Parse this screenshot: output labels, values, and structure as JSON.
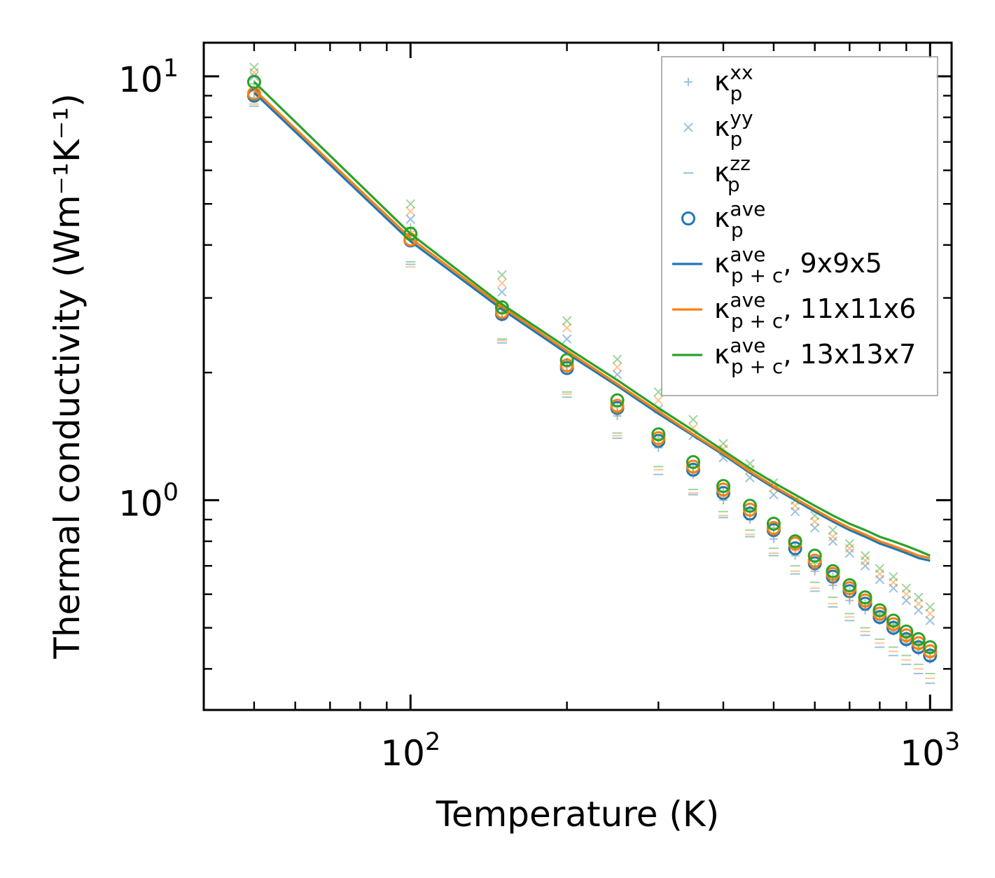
{
  "chart_data": {
    "type": "scatter",
    "xscale": "log",
    "yscale": "log",
    "xlabel": "Temperature (K)",
    "ylabel": "Thermal conductivity (Wm⁻¹K⁻¹)",
    "xlim": [
      40,
      1100
    ],
    "ylim": [
      0.32,
      12
    ],
    "x_ticks": [
      {
        "value": 100,
        "base": "10",
        "exp": "2"
      },
      {
        "value": 1000,
        "base": "10",
        "exp": "3"
      }
    ],
    "y_ticks": [
      {
        "value": 1,
        "base": "10",
        "exp": "0"
      },
      {
        "value": 10,
        "base": "10",
        "exp": "1"
      }
    ],
    "temperatures": [
      50,
      100,
      150,
      200,
      250,
      300,
      350,
      400,
      450,
      500,
      550,
      600,
      650,
      700,
      750,
      800,
      850,
      900,
      950,
      1000
    ],
    "series": [
      {
        "name": "9x9x5",
        "color": "#1f77b4",
        "kappa_xx": [
          8.9,
          4.2,
          2.7,
          2.02,
          1.58,
          1.33,
          1.15,
          1.0,
          0.9,
          0.81,
          0.74,
          0.68,
          0.63,
          0.58,
          0.55,
          0.52,
          0.49,
          0.46,
          0.44,
          0.42
        ],
        "kappa_yy": [
          10.0,
          4.6,
          3.1,
          2.4,
          1.98,
          1.64,
          1.42,
          1.26,
          1.13,
          1.03,
          0.94,
          0.86,
          0.8,
          0.75,
          0.7,
          0.65,
          0.62,
          0.58,
          0.55,
          0.52
        ],
        "kappa_zz": [
          8.5,
          3.6,
          2.35,
          1.75,
          1.4,
          1.15,
          1.03,
          0.91,
          0.82,
          0.74,
          0.67,
          0.61,
          0.56,
          0.52,
          0.48,
          0.45,
          0.43,
          0.41,
          0.39,
          0.37
        ],
        "kappa_ave": [
          9.0,
          4.1,
          2.75,
          2.05,
          1.65,
          1.38,
          1.18,
          1.04,
          0.93,
          0.85,
          0.77,
          0.71,
          0.66,
          0.61,
          0.57,
          0.53,
          0.5,
          0.47,
          0.45,
          0.43
        ],
        "kappa_pc": [
          9.15,
          4.08,
          2.82,
          2.22,
          1.86,
          1.6,
          1.42,
          1.28,
          1.16,
          1.07,
          1.0,
          0.94,
          0.89,
          0.85,
          0.82,
          0.79,
          0.77,
          0.75,
          0.73,
          0.72
        ]
      },
      {
        "name": "11x11x6",
        "color": "#ff7f0e",
        "kappa_xx": [
          9.2,
          4.3,
          2.75,
          2.06,
          1.61,
          1.36,
          1.17,
          1.02,
          0.92,
          0.83,
          0.76,
          0.69,
          0.64,
          0.59,
          0.56,
          0.53,
          0.5,
          0.47,
          0.45,
          0.43
        ],
        "kappa_yy": [
          10.2,
          4.8,
          3.25,
          2.55,
          2.06,
          1.72,
          1.48,
          1.32,
          1.18,
          1.07,
          0.97,
          0.89,
          0.82,
          0.77,
          0.72,
          0.67,
          0.64,
          0.6,
          0.57,
          0.54
        ],
        "kappa_zz": [
          8.6,
          3.55,
          2.38,
          1.78,
          1.42,
          1.18,
          1.04,
          0.92,
          0.83,
          0.75,
          0.68,
          0.62,
          0.57,
          0.53,
          0.49,
          0.46,
          0.44,
          0.42,
          0.4,
          0.38
        ],
        "kappa_ave": [
          9.1,
          4.12,
          2.78,
          2.08,
          1.67,
          1.4,
          1.2,
          1.06,
          0.95,
          0.86,
          0.79,
          0.72,
          0.67,
          0.62,
          0.58,
          0.54,
          0.51,
          0.48,
          0.46,
          0.44
        ],
        "kappa_pc": [
          9.3,
          4.15,
          2.86,
          2.25,
          1.88,
          1.62,
          1.43,
          1.29,
          1.17,
          1.08,
          1.01,
          0.95,
          0.9,
          0.86,
          0.83,
          0.8,
          0.78,
          0.76,
          0.74,
          0.73
        ]
      },
      {
        "name": "13x13x7",
        "color": "#2ca02c",
        "kappa_xx": [
          9.6,
          4.4,
          2.82,
          2.12,
          1.66,
          1.4,
          1.2,
          1.05,
          0.95,
          0.86,
          0.78,
          0.71,
          0.66,
          0.61,
          0.57,
          0.54,
          0.51,
          0.48,
          0.46,
          0.44
        ],
        "kappa_yy": [
          10.5,
          5.0,
          3.4,
          2.65,
          2.15,
          1.8,
          1.55,
          1.36,
          1.22,
          1.1,
          1.0,
          0.92,
          0.85,
          0.79,
          0.74,
          0.69,
          0.66,
          0.62,
          0.59,
          0.56
        ],
        "kappa_zz": [
          8.8,
          3.65,
          2.4,
          1.8,
          1.44,
          1.2,
          1.06,
          0.94,
          0.85,
          0.77,
          0.7,
          0.64,
          0.59,
          0.54,
          0.5,
          0.47,
          0.45,
          0.43,
          0.41,
          0.39
        ],
        "kappa_ave": [
          9.7,
          4.25,
          2.85,
          2.14,
          1.72,
          1.43,
          1.23,
          1.08,
          0.97,
          0.88,
          0.8,
          0.74,
          0.68,
          0.63,
          0.59,
          0.55,
          0.52,
          0.49,
          0.47,
          0.45
        ],
        "kappa_pc": [
          9.7,
          4.25,
          2.9,
          2.29,
          1.92,
          1.65,
          1.46,
          1.31,
          1.19,
          1.1,
          1.03,
          0.97,
          0.92,
          0.88,
          0.85,
          0.82,
          0.8,
          0.78,
          0.76,
          0.74
        ]
      }
    ],
    "legend": {
      "position": "top-right",
      "entries": [
        {
          "marker": "plus",
          "color": "#1f77b4",
          "base": "κ",
          "sup": "xx",
          "sub": "p",
          "suffix": ""
        },
        {
          "marker": "x",
          "color": "#1f77b4",
          "base": "κ",
          "sup": "yy",
          "sub": "p",
          "suffix": ""
        },
        {
          "marker": "dash",
          "color": "#1f77b4",
          "base": "κ",
          "sup": "zz",
          "sub": "p",
          "suffix": ""
        },
        {
          "marker": "circle",
          "color": "#1f77b4",
          "base": "κ",
          "sup": "ave",
          "sub": "p",
          "suffix": ""
        },
        {
          "marker": "line",
          "color": "#1f77b4",
          "base": "κ",
          "sup": "ave",
          "sub": "p + c",
          "suffix": ", 9x9x5"
        },
        {
          "marker": "line",
          "color": "#ff7f0e",
          "base": "κ",
          "sup": "ave",
          "sub": "p + c",
          "suffix": ", 11x11x6"
        },
        {
          "marker": "line",
          "color": "#2ca02c",
          "base": "κ",
          "sup": "ave",
          "sub": "p + c",
          "suffix": ", 13x13x7"
        }
      ]
    }
  }
}
